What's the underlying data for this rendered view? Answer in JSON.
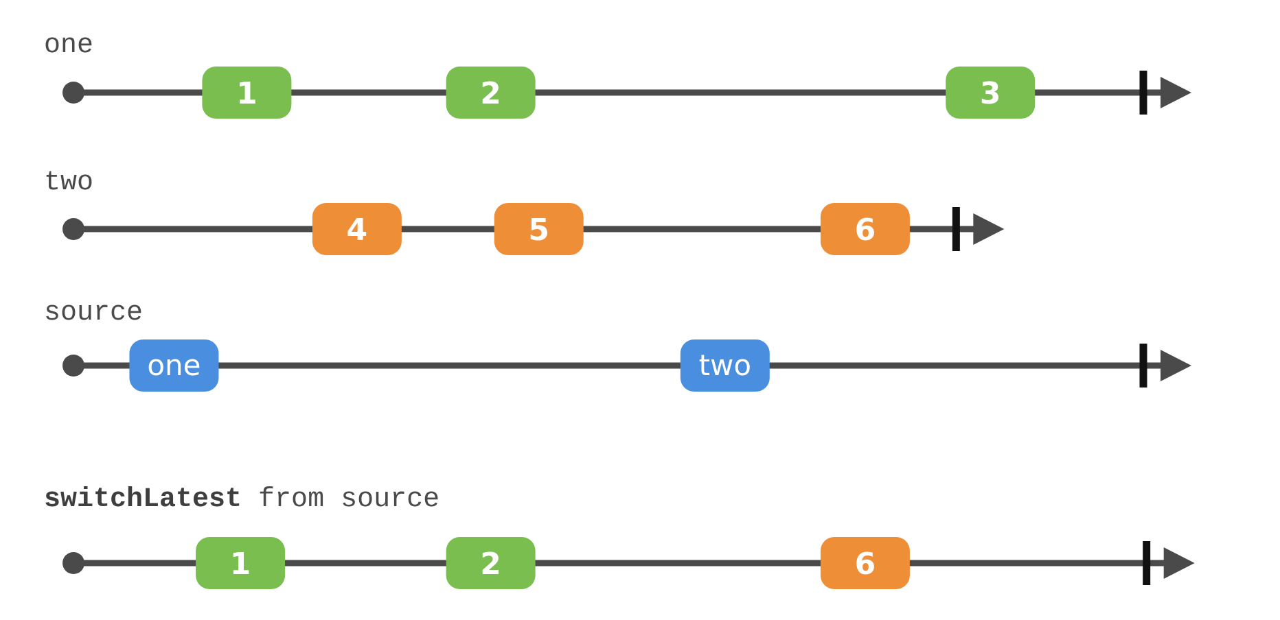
{
  "streams": [
    {
      "id": "one",
      "label": "one",
      "label_bold": "",
      "end_time": 100,
      "marbles": [
        {
          "time": 16.2,
          "text": "1",
          "color": "green"
        },
        {
          "time": 39.0,
          "text": "2",
          "color": "green"
        },
        {
          "time": 85.7,
          "text": "3",
          "color": "green"
        }
      ]
    },
    {
      "id": "two",
      "label": "two",
      "label_bold": "",
      "end_time": 82.5,
      "marbles": [
        {
          "time": 26.5,
          "text": "4",
          "color": "orange"
        },
        {
          "time": 43.5,
          "text": "5",
          "color": "orange"
        },
        {
          "time": 74.0,
          "text": "6",
          "color": "orange"
        }
      ]
    },
    {
      "id": "source",
      "label": "source",
      "label_bold": "",
      "end_time": 100,
      "marbles": [
        {
          "time": 9.4,
          "text": "one",
          "color": "blue"
        },
        {
          "time": 60.9,
          "text": "two",
          "color": "blue"
        }
      ]
    },
    {
      "id": "result",
      "label": " from source",
      "label_bold": "switchLatest",
      "end_time": 100.3,
      "marbles": [
        {
          "time": 15.6,
          "text": "1",
          "color": "green"
        },
        {
          "time": 39.0,
          "text": "2",
          "color": "green"
        },
        {
          "time": 74.0,
          "text": "6",
          "color": "orange"
        }
      ]
    }
  ],
  "colors": {
    "green": "#79BE4E",
    "orange": "#EE8E36",
    "blue": "#4A8EE0",
    "line": "#4A4A4A",
    "terminator": "#111111",
    "label": "#4A4A4A"
  }
}
